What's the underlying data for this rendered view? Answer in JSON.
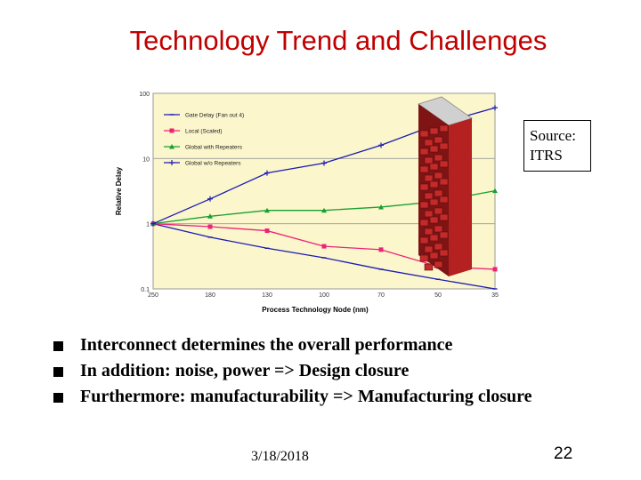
{
  "slide": {
    "title": "Technology Trend and Challenges",
    "source_line1": "Source:",
    "source_line2": "ITRS",
    "bullets": [
      "Interconnect determines the overall performance",
      "In addition: noise,  power => Design closure",
      "Furthermore: manufacturability => Manufacturing closure"
    ],
    "date": "3/18/2018",
    "page_number": "22"
  },
  "chart_data": {
    "type": "line",
    "xlabel": "Process Technology Node (nm)",
    "ylabel": "Relative Delay",
    "y_scale": "log",
    "ylim": [
      0.1,
      100
    ],
    "y_ticks": [
      "100",
      "10",
      "1",
      "0.1"
    ],
    "x_ticks": [
      "250",
      "180",
      "130",
      "100",
      "70",
      "50",
      "35"
    ],
    "legend": [
      "Gate Delay (Fan out 4)",
      "Local (Scaled)",
      "Global with Repeaters",
      "Global w/o Repeaters"
    ],
    "legend_position": "top-left",
    "colors": {
      "gate_delay": "#1c1cb4",
      "local": "#ee2277",
      "global_repeaters": "#18a032",
      "global_no_repeaters": "#1c1cb4",
      "plot_background": "#fbf6cc",
      "wall_brick": "#b52020",
      "wall_cap": "#d0d0d0"
    },
    "series": [
      {
        "name": "Gate Delay (Fan out 4)",
        "values": [
          1,
          0.62,
          0.42,
          0.3,
          0.2,
          0.14,
          0.1
        ]
      },
      {
        "name": "Local (Scaled)",
        "values": [
          1,
          0.9,
          0.78,
          0.45,
          0.4,
          0.22,
          0.2
        ]
      },
      {
        "name": "Global with Repeaters",
        "values": [
          1,
          1.3,
          1.6,
          1.6,
          1.8,
          2.2,
          3.2
        ]
      },
      {
        "name": "Global w/o Repeaters",
        "values": [
          1,
          2.4,
          6,
          8.5,
          16,
          34,
          60
        ]
      }
    ]
  }
}
